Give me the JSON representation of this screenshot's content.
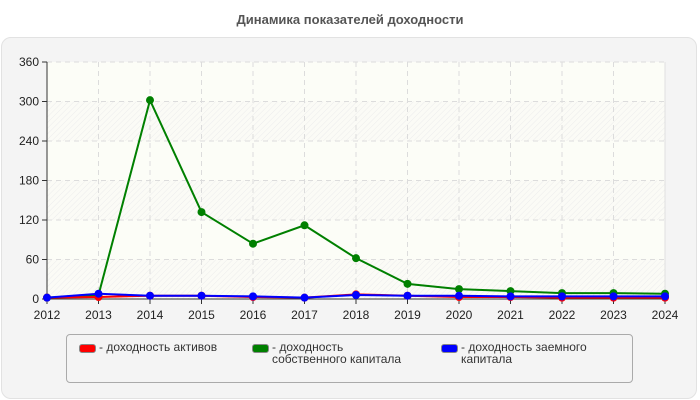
{
  "title": "Динамика показателей доходности",
  "chart_data": {
    "type": "line",
    "title": "Динамика показателей доходности",
    "xlabel": "",
    "ylabel": "",
    "x": [
      "2012",
      "2013",
      "2014",
      "2015",
      "2016",
      "2017",
      "2018",
      "2019",
      "2020",
      "2021",
      "2022",
      "2023",
      "2024"
    ],
    "yticks": [
      "0",
      "60",
      "120",
      "180",
      "240",
      "300",
      "360"
    ],
    "ylim": [
      0,
      360
    ],
    "grid": true,
    "legend_position": "bottom",
    "series": [
      {
        "name": "доходность активов",
        "color": "#ff0000",
        "values": [
          2,
          3,
          5,
          5,
          3,
          2,
          7,
          5,
          3,
          3,
          2,
          2,
          2
        ]
      },
      {
        "name": "доходность собственного капитала",
        "color": "#008000",
        "values": [
          2,
          6,
          302,
          132,
          84,
          112,
          62,
          23,
          15,
          12,
          9,
          9,
          8
        ]
      },
      {
        "name": "доходность заемного капитала",
        "color": "#0000ff",
        "values": [
          2,
          8,
          5,
          5,
          4,
          2,
          6,
          5,
          5,
          4,
          4,
          4,
          4
        ]
      }
    ]
  },
  "legend": {
    "items": [
      {
        "label": "- доходность активов",
        "color": "#ff0000"
      },
      {
        "label": "- доходность собственного капитала",
        "color": "#008000"
      },
      {
        "label": "- доходность заемного капитала",
        "color": "#0000ff"
      }
    ]
  }
}
